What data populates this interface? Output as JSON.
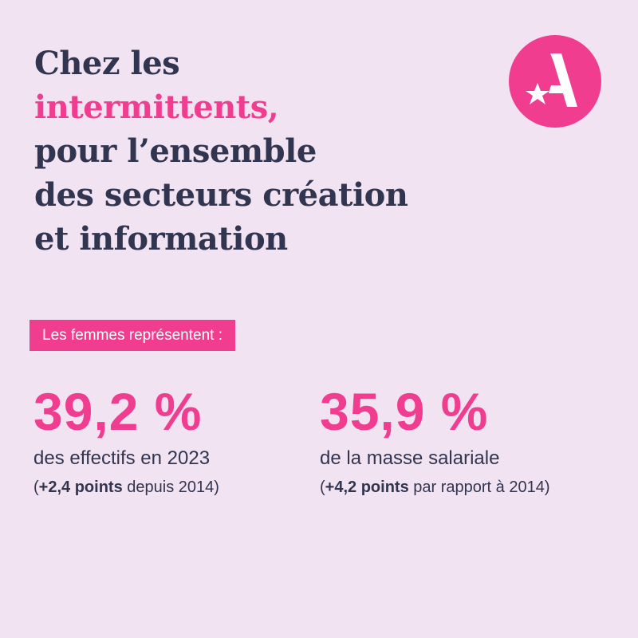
{
  "title": {
    "line1": "Chez les",
    "line2_accent": "intermittents,",
    "line3": "pour l’ensemble",
    "line4": "des secteurs création",
    "line5": "et information"
  },
  "logo": {
    "icon": "star-a-logo-icon",
    "color": "#f03d8f"
  },
  "badge": {
    "label": "Les femmes représentent :"
  },
  "stats": [
    {
      "value": "39,2 %",
      "description": "des effectifs en 2023",
      "sub_open": "(",
      "sub_bold": "+2,4 points",
      "sub_rest": " depuis 2014)"
    },
    {
      "value": "35,9 %",
      "description": "de la masse salariale",
      "sub_open": "(",
      "sub_bold": "+4,2 points",
      "sub_rest": " par rapport à 2014)"
    }
  ],
  "colors": {
    "background": "#f1e3f1",
    "accent": "#f03d8f",
    "text": "#323550"
  }
}
